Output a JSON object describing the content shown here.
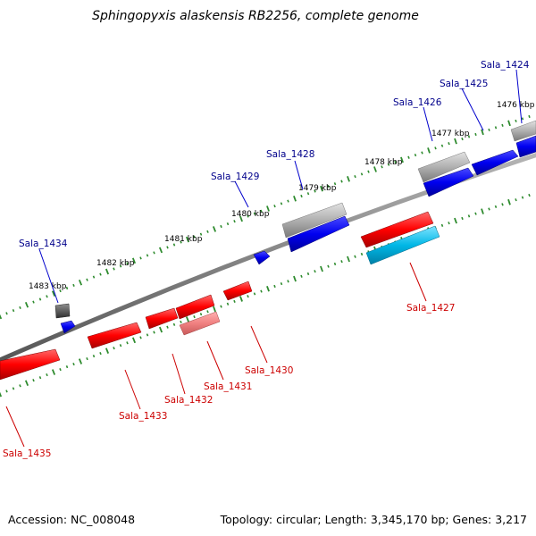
{
  "title": "Sphingopyxis alaskensis RB2256, complete genome",
  "footer": {
    "accession": "Accession: NC_008048",
    "summary": "Topology: circular; Length: 3,345,170 bp; Genes: 3,217"
  },
  "colors": {
    "strand_plus": "#0000ff",
    "strand_minus": "#ff0000",
    "plus_label": "#00008b",
    "minus_label": "#cc0000",
    "backbone": "#888888",
    "tick_dots": "#2e8b2e",
    "rrna": "#00b7e6",
    "pseudo_minus": "#f08080",
    "gray_feature": "#aaaaaa"
  },
  "scale_labels": [
    "1476 kbp",
    "1477 kbp",
    "1478 kbp",
    "1479 kbp",
    "1480 kbp",
    "1481 kbp",
    "1482 kbp",
    "1483 kbp"
  ],
  "genes": [
    {
      "id": "Sala_1424",
      "strand": "+"
    },
    {
      "id": "Sala_1425",
      "strand": "+"
    },
    {
      "id": "Sala_1426",
      "strand": "+"
    },
    {
      "id": "Sala_1427",
      "strand": "-"
    },
    {
      "id": "Sala_1428",
      "strand": "+"
    },
    {
      "id": "Sala_1429",
      "strand": "+"
    },
    {
      "id": "Sala_1430",
      "strand": "-"
    },
    {
      "id": "Sala_1431",
      "strand": "-"
    },
    {
      "id": "Sala_1432",
      "strand": "-"
    },
    {
      "id": "Sala_1433",
      "strand": "-"
    },
    {
      "id": "Sala_1434",
      "strand": "+"
    },
    {
      "id": "Sala_1435",
      "strand": "-"
    }
  ]
}
